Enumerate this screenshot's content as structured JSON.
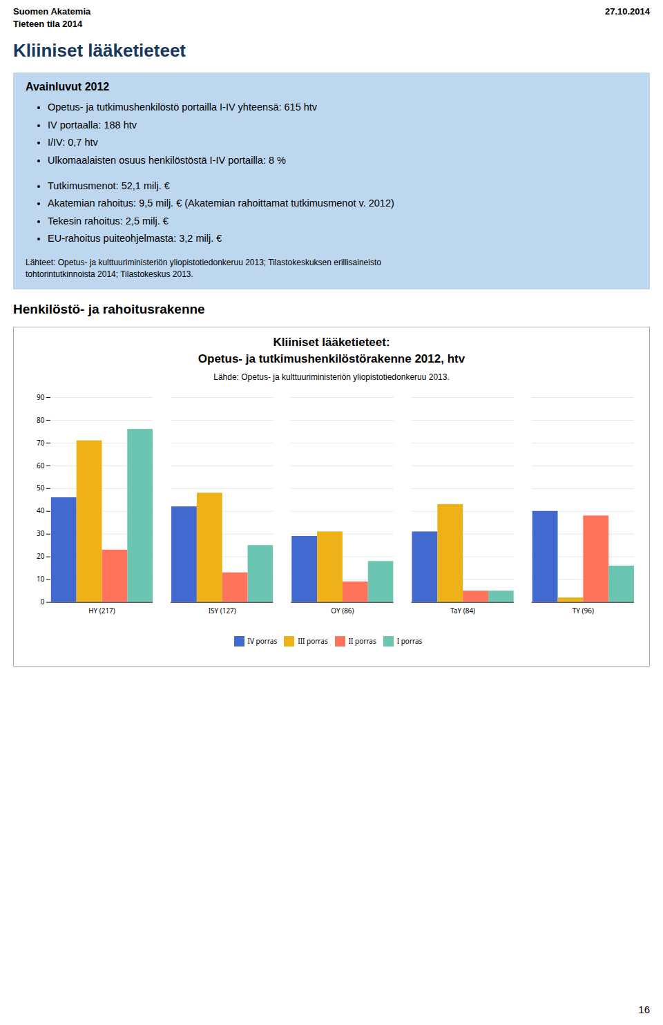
{
  "page": {
    "header_left": "Suomen Akatemia\nTieteen tila 2014",
    "header_right": "27.10.2014",
    "section_title": "Kliiniset lääketieteet",
    "box_title": "Avainluvut 2012",
    "box_bullets1": [
      "Opetus- ja tutkimushenkilöstö portailla I-IV yhteensä: 615 htv",
      "IV portaalla: 188 htv",
      "I/IV: 0,7 htv",
      "Ulkomaalaisten osuus henkilöstöstä I-IV portailla: 8 %"
    ],
    "box_bullets2": [
      "Tutkimusmenot: 52,1 milj. €",
      "Akatemian rahoitus: 9,5 milj. € (Akatemian rahoittamat tutkimusmenot v. 2012)",
      "Tekesin rahoitus: 2,5 milj. €",
      "EU-rahoitus puiteohjelmasta: 3,2 milj. €"
    ],
    "box_footnote": "Lähteet: Opetus- ja kulttuuriministeriön yliopistotiedonkeruu 2013; Tilastokeskuksen erillisaineisto\ntohtorintutkinnoista 2014; Tilastokeskus 2013.",
    "section2_title": "Henkilöstö- ja rahoitusrakenne",
    "page_number": "16"
  },
  "chart_data": {
    "type": "bar",
    "title": "Kliiniset lääketieteet:\nOpetus- ja tutkimushenkilöstörakenne 2012, htv",
    "subtitle": "Lähde: Opetus- ja kulttuuriministeriön yliopistotiedonkeruu 2013.",
    "categories": [
      "HY (217)",
      "ISY (127)",
      "OY (86)",
      "TaY (84)",
      "TY (96)"
    ],
    "series": [
      {
        "name": "IV porras",
        "values": [
          46,
          42,
          29,
          31,
          40
        ]
      },
      {
        "name": "III porras",
        "values": [
          71,
          48,
          31,
          43,
          2
        ]
      },
      {
        "name": "II porras",
        "values": [
          23,
          13,
          9,
          5,
          38
        ]
      },
      {
        "name": "I porras",
        "values": [
          76,
          25,
          18,
          5,
          16
        ]
      }
    ],
    "ylim": [
      0,
      90
    ],
    "yticks": [
      0,
      10,
      20,
      30,
      40,
      50,
      60,
      70,
      80,
      90
    ],
    "grid": true,
    "legend": "bottom"
  }
}
